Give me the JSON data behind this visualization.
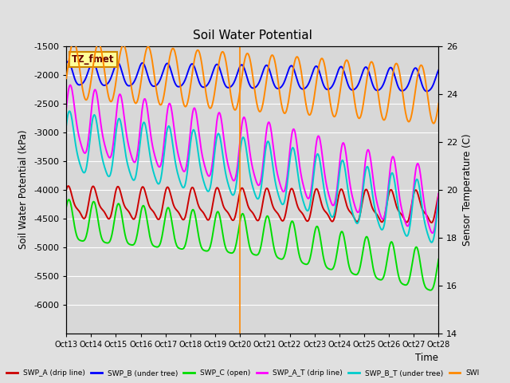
{
  "title": "Soil Water Potential",
  "xlabel": "Time",
  "ylabel_left": "Soil Water Potential (kPa)",
  "ylabel_right": "Sensor Temperature (C)",
  "ylim_left": [
    -6500,
    -1500
  ],
  "ylim_right": [
    14,
    26
  ],
  "yticks_left": [
    -6000,
    -5500,
    -5000,
    -4500,
    -4000,
    -3500,
    -3000,
    -2500,
    -2000,
    -1500
  ],
  "yticks_right": [
    14,
    16,
    18,
    20,
    22,
    24,
    26
  ],
  "x_labels": [
    "Oct 13",
    "Oct 14",
    "Oct 15",
    "Oct 16",
    "Oct 17",
    "Oct 18",
    "Oct 19",
    "Oct 20",
    "Oct 21",
    "Oct 22",
    "Oct 23",
    "Oct 24",
    "Oct 25",
    "Oct 26",
    "Oct 27",
    "Oct 28"
  ],
  "background_color": "#e0e0e0",
  "plot_bg_color": "#d8d8d8",
  "legend_box_color": "#ffff99",
  "legend_box_border": "#cc8800",
  "legend_label": "TZ_fmet",
  "series": {
    "SWP_B": {
      "color": "#0000ff",
      "label": "SWP_B (under tree)"
    },
    "SWP_C": {
      "color": "#00dd00",
      "label": "SWP_C (open)"
    },
    "SWP_A_T": {
      "color": "#ff00ff",
      "label": "SWP_A_T (drip line)"
    },
    "SWP_B_T": {
      "color": "#00cccc",
      "label": "SWP_B_T (under tree)"
    },
    "SWP_temp": {
      "color": "#ff8800",
      "label": "SWI"
    },
    "SWP_red": {
      "color": "#cc0000",
      "label": "SWP_A (drip line)"
    }
  },
  "vline_x": 7,
  "vline_color": "#ff8800"
}
